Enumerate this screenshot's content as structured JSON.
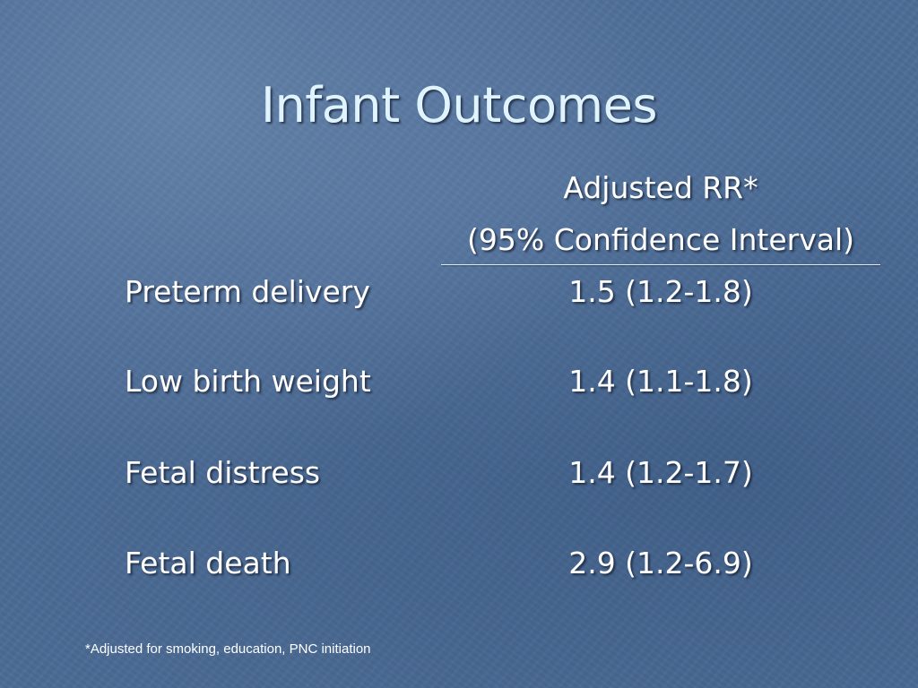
{
  "slide": {
    "title": "Infant Outcomes",
    "column_header": {
      "line1": "Adjusted RR*",
      "line2": "(95% Confidence Interval)"
    },
    "rows": [
      {
        "label": "Preterm delivery",
        "value": "1.5 (1.2-1.8)"
      },
      {
        "label": "Low birth weight",
        "value": "1.4 (1.1-1.8)"
      },
      {
        "label": "Fetal distress",
        "value": "1.4 (1.2-1.7)"
      },
      {
        "label": "Fetal death",
        "value": "2.9 (1.2-6.9)"
      }
    ],
    "footnote": "*Adjusted for smoking, education, PNC initiation"
  },
  "colors": {
    "background": "#4d6d97",
    "title_text": "#dff4ff",
    "body_text": "#ffffff"
  }
}
